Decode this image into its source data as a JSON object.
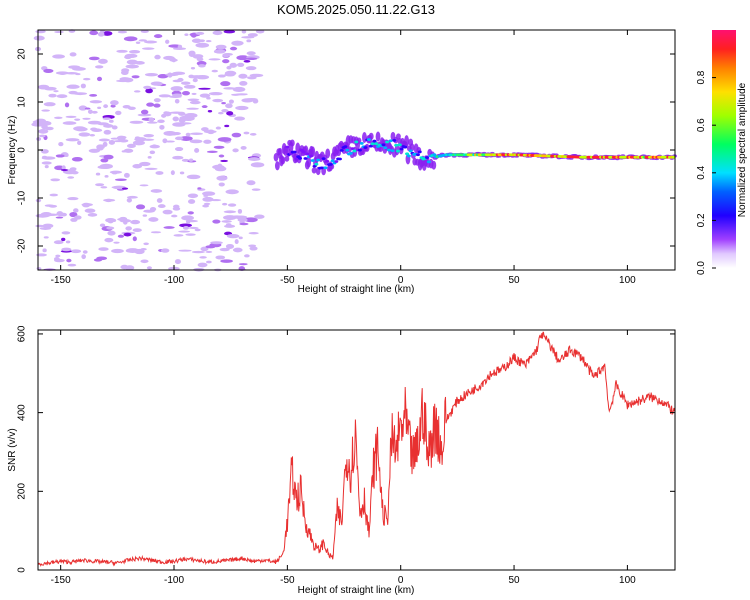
{
  "title": "KOM5.2025.050.11.22.G13",
  "chart_data": [
    {
      "type": "heatmap",
      "xlabel": "Height of straight line (km)",
      "ylabel": "Frequency (Hz)",
      "xlim": [
        -160,
        121
      ],
      "ylim": [
        -25,
        25
      ],
      "x_ticks": [
        -150,
        -100,
        -50,
        0,
        50,
        100
      ],
      "y_ticks": [
        -20,
        -10,
        0,
        10,
        20
      ],
      "colorbar": {
        "label": "Normalized spectral amplitude",
        "range": [
          0,
          1
        ],
        "ticks": [
          0.0,
          0.2,
          0.4,
          0.6,
          0.8
        ],
        "colormap": [
          "#ffffff",
          "#c8a0ff",
          "#8000ff",
          "#0000ff",
          "#00c8ff",
          "#00ff80",
          "#c8ff00",
          "#ffc800",
          "#ff3000",
          "#ff1070"
        ]
      },
      "description_trace": [
        {
          "x": -50,
          "freq": 0,
          "amp": 0.15
        },
        {
          "x": -35,
          "freq": -3,
          "amp": 0.3
        },
        {
          "x": -20,
          "freq": 1,
          "amp": 0.3
        },
        {
          "x": 0,
          "freq": 1,
          "amp": 0.35
        },
        {
          "x": 10,
          "freq": -2,
          "amp": 0.35
        },
        {
          "x": 20,
          "freq": -1,
          "amp": 0.45
        },
        {
          "x": 50,
          "freq": -1,
          "amp": 0.8
        },
        {
          "x": 80,
          "freq": -1.5,
          "amp": 0.75
        },
        {
          "x": 121,
          "freq": -1.5,
          "amp": 0.7
        }
      ]
    },
    {
      "type": "line",
      "xlabel": "Height of straight line (km)",
      "ylabel": "SNR (v/v)",
      "xlim": [
        -160,
        121
      ],
      "ylim": [
        0,
        610
      ],
      "x_ticks": [
        -150,
        -100,
        -50,
        0,
        50,
        100
      ],
      "y_ticks": [
        0,
        200,
        400,
        600
      ],
      "color": "#e83030",
      "series": [
        {
          "name": "SNR",
          "x": [
            -160,
            -155,
            -150,
            -145,
            -140,
            -135,
            -130,
            -125,
            -120,
            -115,
            -110,
            -105,
            -100,
            -95,
            -90,
            -85,
            -80,
            -75,
            -70,
            -65,
            -60,
            -55,
            -52,
            -50,
            -48,
            -46,
            -44,
            -42,
            -40,
            -38,
            -36,
            -34,
            -32,
            -30,
            -28,
            -26,
            -24,
            -22,
            -20,
            -18,
            -16,
            -14,
            -12,
            -10,
            -8,
            -6,
            -4,
            -2,
            0,
            2,
            4,
            6,
            8,
            10,
            12,
            14,
            16,
            18,
            20,
            25,
            30,
            35,
            40,
            45,
            50,
            55,
            60,
            62,
            65,
            70,
            75,
            80,
            85,
            90,
            92,
            95,
            100,
            105,
            110,
            115,
            121
          ],
          "y": [
            15,
            18,
            22,
            20,
            25,
            22,
            20,
            18,
            25,
            30,
            25,
            20,
            22,
            28,
            25,
            20,
            22,
            25,
            30,
            22,
            25,
            20,
            40,
            120,
            250,
            180,
            200,
            120,
            90,
            60,
            50,
            70,
            40,
            30,
            150,
            120,
            300,
            250,
            350,
            150,
            180,
            90,
            260,
            310,
            150,
            120,
            330,
            300,
            360,
            380,
            310,
            280,
            330,
            420,
            280,
            350,
            370,
            300,
            380,
            430,
            450,
            470,
            500,
            510,
            540,
            520,
            560,
            600,
            580,
            530,
            560,
            540,
            490,
            520,
            400,
            470,
            420,
            430,
            440,
            430,
            400
          ]
        }
      ]
    }
  ]
}
